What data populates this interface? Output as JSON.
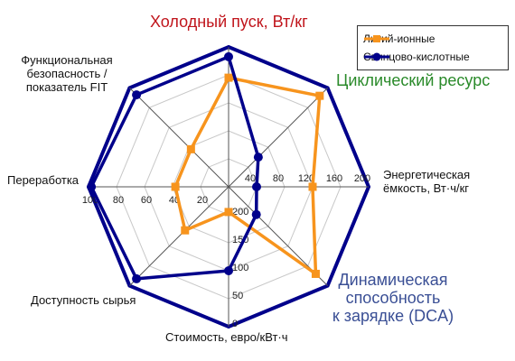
{
  "chart_data": {
    "type": "radar",
    "axes": [
      {
        "label": "Холодный пуск, Вт/кг",
        "color": "#c0151c",
        "emphasis": true
      },
      {
        "label": "Циклический ресурс",
        "color": "#2a8a2a",
        "emphasis": true
      },
      {
        "label": "Энергетическая\nёмкость, Вт·ч/кг",
        "color": "#111111",
        "emphasis": false
      },
      {
        "label": "Динамическая\nспособность\nк зарядке (DCA)",
        "color": "#3a4f95",
        "emphasis": true
      },
      {
        "label": "Стоимость, евро/кВт·ч",
        "color": "#111111",
        "emphasis": false
      },
      {
        "label": "Доступность сырья",
        "color": "#111111",
        "emphasis": false
      },
      {
        "label": "Переработка",
        "color": "#111111",
        "emphasis": false
      },
      {
        "label": "Функциональная\nбезопасность /\nпоказатель FIT",
        "color": "#111111",
        "emphasis": false
      }
    ],
    "series": [
      {
        "name": "Литий-ионные",
        "color": "#f7941d",
        "marker": "square",
        "values": [
          0.78,
          0.92,
          0.6,
          0.88,
          0.18,
          0.44,
          0.38,
          0.38
        ]
      },
      {
        "name": "Свинцово-кислотные",
        "color": "#00008b",
        "marker": "circle",
        "values": [
          0.93,
          0.3,
          0.2,
          0.28,
          0.6,
          0.93,
          0.98,
          0.93
        ]
      }
    ],
    "scale_levels": 5,
    "ticks": {
      "energy": [
        "40",
        "80",
        "120",
        "160",
        "200"
      ],
      "recycling": [
        "100",
        "80",
        "60",
        "40",
        "20"
      ],
      "cost": [
        "200",
        "150",
        "100",
        "50",
        "0"
      ]
    },
    "legend": "top-right",
    "grid": true
  }
}
